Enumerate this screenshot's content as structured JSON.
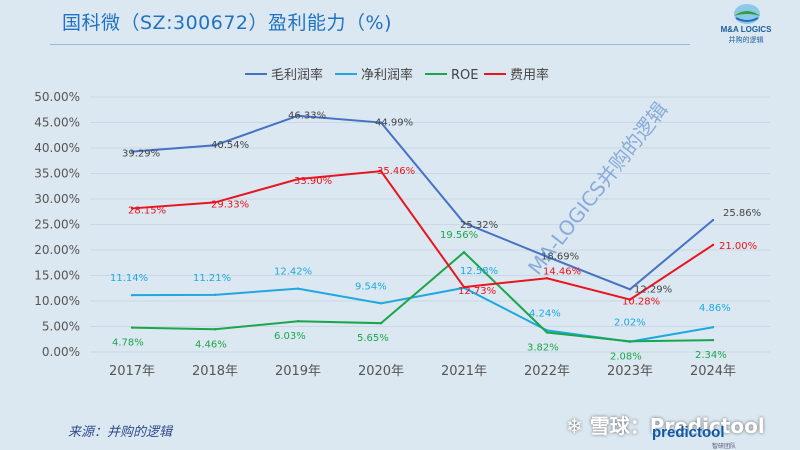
{
  "header": {
    "title": "国科微（SZ:300672）盈利能力（%)"
  },
  "logo": {
    "name": "M&A LOGICS",
    "subtitle": "并购的逻辑"
  },
  "footer": {
    "source": "来源：并购的逻辑",
    "watermark_diagonal": "MA-LOGICS并购的逻辑",
    "xueqiu": "❄ 雪球：Predictool",
    "predictool": "predictool",
    "predictool_sub": "智研团队"
  },
  "colors": {
    "gross_margin": "#4472c4",
    "net_margin": "#1fa8e0",
    "roe": "#1aa64b",
    "expense_ratio": "#e8141e"
  },
  "chart_data": {
    "type": "line",
    "categories": [
      "2017年",
      "2018年",
      "2019年",
      "2020年",
      "2021年",
      "2022年",
      "2023年",
      "2024年"
    ],
    "ylim": [
      0,
      50
    ],
    "yticks": [
      "0.00%",
      "5.00%",
      "10.00%",
      "15.00%",
      "20.00%",
      "25.00%",
      "30.00%",
      "35.00%",
      "40.00%",
      "45.00%",
      "50.00%"
    ],
    "legend_position": "top",
    "grid": true,
    "series": [
      {
        "name": "毛利润率",
        "color": "#4472c4",
        "values": [
          39.29,
          40.54,
          46.33,
          44.99,
          25.32,
          18.69,
          12.29,
          25.86
        ],
        "labels": [
          "39.29%",
          "40.54%",
          "46.33%",
          "44.99%",
          "25.32%",
          "18.69%",
          "12.29%",
          "25.86%"
        ]
      },
      {
        "name": "净利润率",
        "color": "#1fa8e0",
        "values": [
          11.14,
          11.21,
          12.42,
          9.54,
          12.58,
          4.24,
          2.02,
          4.86
        ],
        "labels": [
          "11.14%",
          "11.21%",
          "12.42%",
          "9.54%",
          "12.58%",
          "4.24%",
          "2.02%",
          "4.86%"
        ]
      },
      {
        "name": "ROE",
        "color": "#1aa64b",
        "values": [
          4.78,
          4.46,
          6.03,
          5.65,
          19.56,
          3.82,
          2.08,
          2.34
        ],
        "labels": [
          "4.78%",
          "4.46%",
          "6.03%",
          "5.65%",
          "19.56%",
          "3.82%",
          "2.08%",
          "2.34%"
        ]
      },
      {
        "name": "费用率",
        "color": "#e8141e",
        "values": [
          28.15,
          29.33,
          33.9,
          35.46,
          12.73,
          14.46,
          10.28,
          21.0
        ],
        "labels": [
          "28.15%",
          "29.33%",
          "33.90%",
          "35.46%",
          "12.73%",
          "14.46%",
          "10.28%",
          "21.00%"
        ]
      }
    ]
  }
}
